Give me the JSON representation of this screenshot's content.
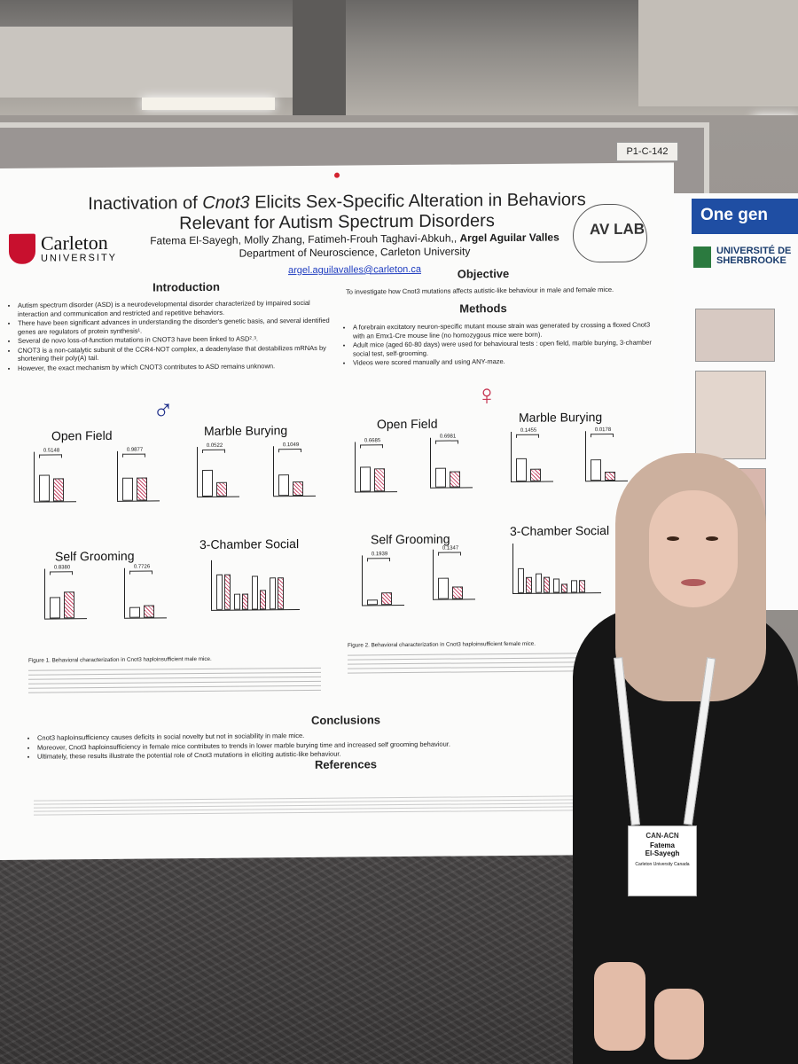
{
  "poster": {
    "title_line1_pre": "Inactivation of ",
    "title_line1_gene": "Cnot3",
    "title_line1_post": " Elicits Sex-Specific Alteration in Behaviors",
    "title_line2": "Relevant for Autism Spectrum Disorders",
    "authors_plain": "Fatema El-Sayegh, Molly Zhang, Fatimeh-Frouh Taghavi-Abkuh,, ",
    "authors_bold": "Argel Aguilar Valles",
    "department": "Department of Neuroscience, Carleton University",
    "email": "argel.aguilavalles@carleton.ca",
    "logo_name": "Carleton",
    "logo_univ": "UNIVERSITY",
    "lab_logo": "AV LAB",
    "introduction": {
      "heading": "Introduction",
      "bullets": [
        "Autism spectrum disorder (ASD) is a neurodevelopmental disorder characterized by impaired social interaction and communication and restricted and repetitive behaviors.",
        "There have been significant advances in understanding the disorder's genetic basis, and several identified genes are regulators of protein synthesis¹.",
        "Several de novo loss-of-function mutations in CNOT3 have been linked to ASD²˒³.",
        "CNOT3 is a non-catalytic subunit of the CCR4-NOT complex, a deadenylase that destabilizes mRNAs by shortening their poly(A) tail.",
        "However, the exact mechanism by which CNOT3 contributes to ASD remains unknown."
      ]
    },
    "objective": {
      "heading": "Objective",
      "text": "To investigate how Cnot3 mutations affects autistic-like behaviour in male and female mice."
    },
    "methods": {
      "heading": "Methods",
      "bullets": [
        "A forebrain excitatory neuron-specific mutant mouse strain was generated by crossing a floxed Cnot3 with an Emx1-Cre mouse line (no homozygous mice were born).",
        "Adult mice (aged 60-80 days) were used for behavioural tests : open field, marble burying, 3-chamber social test, self-grooming.",
        "Videos were scored manually and using ANY-maze."
      ]
    },
    "male_symbol": "♂",
    "female_symbol": "♀",
    "male_panels": {
      "open_field": "Open Field",
      "marble_burying": "Marble Burying",
      "self_grooming": "Self Grooming",
      "three_chamber": "3-Chamber Social"
    },
    "female_panels": {
      "open_field": "Open Field",
      "marble_burying": "Marble Burying",
      "self_grooming": "Self Grooming",
      "three_chamber": "3-Chamber Social"
    },
    "pvalues_male": {
      "a": "0.5148",
      "b": "0.9877",
      "c": "0.0522",
      "d": "0.1049",
      "e": "0.8380",
      "f": "0.7726"
    },
    "pvalues_female": {
      "a": "0.6685",
      "b": "0.6981",
      "c": "0.1455",
      "d": "0.0178",
      "e": "0.1939",
      "f": "0.1347"
    },
    "fig1_caption": "Figure 1. Behavioral characterization in Cnot3 haploinsufficient male mice.",
    "fig2_caption": "Figure 2. Behavioral characterization in Cnot3 haploinsufficient female mice.",
    "conclusions": {
      "heading": "Conclusions",
      "bullets": [
        "Cnot3 haploinsufficiency causes deficits in social novelty but not in sociability in male mice.",
        "Moreover, Cnot3 haploinsufficiency in female mice contributes to trends in lower marble burying time and increased self grooming behaviour.",
        "Ultimately, these results illustrate the potential role of Cnot3 mutations in eliciting autistic-like behaviour."
      ]
    },
    "references": {
      "heading": "References"
    }
  },
  "board_label": "P1-C-142",
  "right_poster": {
    "banner": "One gen",
    "institution": "UNIVERSITÉ DE SHERBROOKE"
  },
  "badge": {
    "logo": "CAN-ACN",
    "first_name": "Fatema",
    "last_name": "El-Sayegh",
    "affiliation": "Carleton University Canada"
  }
}
